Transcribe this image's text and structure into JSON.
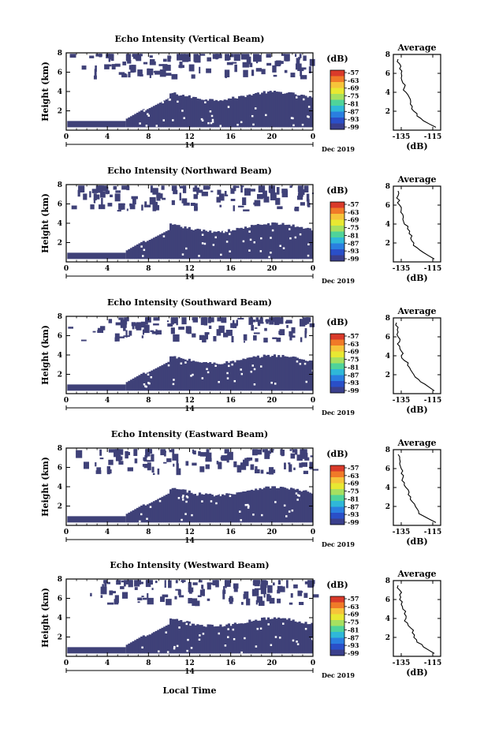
{
  "figure": {
    "xlabel": "Local Time",
    "date_label": "Dec 2019",
    "day_label": "14",
    "ylabel": "Height (km)",
    "avg_title": "Average",
    "avg_xlabel": "(dB)",
    "colorbar_unit": "(dB)",
    "colorbar_ticks": [
      "-57",
      "-63",
      "-69",
      "-75",
      "-81",
      "-87",
      "-93",
      "-99"
    ],
    "colorbar_colors": [
      "#d93a2a",
      "#f07a28",
      "#f6c43a",
      "#e8e832",
      "#a6e060",
      "#4fd39a",
      "#2fb8d8",
      "#2a7fe0",
      "#2a4fc8",
      "#3a3f8c"
    ],
    "echo_color": "#3f4178",
    "time_ticks": [
      "0",
      "4",
      "8",
      "12",
      "16",
      "20",
      "0"
    ],
    "height_ticks": [
      "2",
      "4",
      "6",
      "8"
    ],
    "avg_x_ticks": [
      "-135",
      "-115"
    ],
    "avg_y_ticks": [
      "2",
      "4",
      "6",
      "8"
    ]
  },
  "chart_data": [
    {
      "type": "heatmap",
      "title": "Echo Intensity (Vertical Beam)",
      "xlabel": "Local Time",
      "ylabel": "Height (km)",
      "xlim": [
        0,
        24
      ],
      "ylim": [
        0,
        8
      ],
      "colorbar_range": [
        -99,
        -57
      ],
      "colorbar_unit": "(dB)",
      "average_profile": {
        "title": "Average",
        "xlabel": "(dB)",
        "xlim": [
          -140,
          -110
        ],
        "ylim": [
          0,
          8
        ],
        "height_km": [
          0.3,
          1.0,
          1.5,
          2.0,
          2.5,
          3.0,
          3.5,
          4.0,
          4.5,
          5.0,
          5.5,
          6.0,
          6.5,
          7.0,
          7.5
        ],
        "value_db": [
          -113,
          -121,
          -125,
          -127,
          -128,
          -129,
          -130,
          -132,
          -133,
          -134,
          -135,
          -135,
          -136,
          -136,
          -137
        ]
      }
    },
    {
      "type": "heatmap",
      "title": "Echo Intensity (Northward Beam)",
      "xlabel": "Local Time",
      "ylabel": "Height (km)",
      "xlim": [
        0,
        24
      ],
      "ylim": [
        0,
        8
      ],
      "colorbar_range": [
        -99,
        -57
      ],
      "colorbar_unit": "(dB)",
      "average_profile": {
        "title": "Average",
        "xlabel": "(dB)",
        "xlim": [
          -140,
          -110
        ],
        "ylim": [
          0,
          8
        ],
        "height_km": [
          0.3,
          1.0,
          1.5,
          2.0,
          2.5,
          3.0,
          3.5,
          4.0,
          4.5,
          5.0,
          5.5,
          6.0,
          6.5,
          7.0,
          7.5
        ],
        "value_db": [
          -114,
          -121,
          -125,
          -127,
          -129,
          -130,
          -131,
          -133,
          -134,
          -134,
          -135,
          -136,
          -136,
          -137,
          -137
        ]
      }
    },
    {
      "type": "heatmap",
      "title": "Echo Intensity (Southward Beam)",
      "xlabel": "Local Time",
      "ylabel": "Height (km)",
      "xlim": [
        0,
        24
      ],
      "ylim": [
        0,
        8
      ],
      "colorbar_range": [
        -99,
        -57
      ],
      "colorbar_unit": "(dB)",
      "average_profile": {
        "title": "Average",
        "xlabel": "(dB)",
        "xlim": [
          -140,
          -110
        ],
        "ylim": [
          0,
          8
        ],
        "height_km": [
          0.3,
          1.0,
          1.5,
          2.0,
          2.5,
          3.0,
          3.5,
          4.0,
          4.5,
          5.0,
          5.5,
          6.0,
          6.5,
          7.0,
          7.5
        ],
        "value_db": [
          -114,
          -120,
          -124,
          -127,
          -129,
          -131,
          -133,
          -135,
          -135,
          -136,
          -136,
          -137,
          -137,
          -137,
          -138
        ]
      }
    },
    {
      "type": "heatmap",
      "title": "Echo Intensity (Eastward Beam)",
      "xlabel": "Local Time",
      "ylabel": "Height (km)",
      "xlim": [
        0,
        24
      ],
      "ylim": [
        0,
        8
      ],
      "colorbar_range": [
        -99,
        -57
      ],
      "colorbar_unit": "(dB)",
      "average_profile": {
        "title": "Average",
        "xlabel": "(dB)",
        "xlim": [
          -140,
          -110
        ],
        "ylim": [
          0,
          8
        ],
        "height_km": [
          0.3,
          1.0,
          1.5,
          2.0,
          2.5,
          3.0,
          3.5,
          4.0,
          4.5,
          5.0,
          5.5,
          6.0,
          6.5,
          7.0,
          7.5
        ],
        "value_db": [
          -113,
          -121,
          -124,
          -126,
          -128,
          -129,
          -130,
          -132,
          -133,
          -134,
          -135,
          -135,
          -136,
          -136,
          -137
        ]
      }
    },
    {
      "type": "heatmap",
      "title": "Echo Intensity (Westward Beam)",
      "xlabel": "Local Time",
      "ylabel": "Height (km)",
      "xlim": [
        0,
        24
      ],
      "ylim": [
        0,
        8
      ],
      "colorbar_range": [
        -99,
        -57
      ],
      "colorbar_unit": "(dB)",
      "average_profile": {
        "title": "Average",
        "xlabel": "(dB)",
        "xlim": [
          -140,
          -110
        ],
        "ylim": [
          0,
          8
        ],
        "height_km": [
          0.3,
          1.0,
          1.5,
          2.0,
          2.5,
          3.0,
          3.5,
          4.0,
          4.5,
          5.0,
          5.5,
          6.0,
          6.5,
          7.0,
          7.5
        ],
        "value_db": [
          -114,
          -121,
          -125,
          -127,
          -128,
          -129,
          -131,
          -132,
          -133,
          -134,
          -135,
          -136,
          -136,
          -136,
          -137
        ]
      }
    }
  ]
}
